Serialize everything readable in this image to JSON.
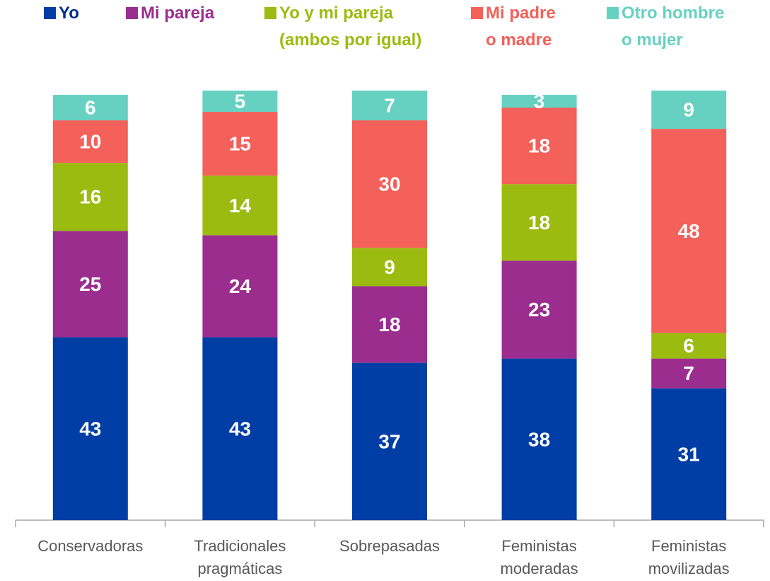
{
  "chart_data": {
    "type": "stacked_bar",
    "categories": [
      "Conservadoras",
      "Tradicionales\npragmáticas",
      "Sobrepasadas",
      "Feministas\nmoderadas",
      "Feministas\nmovilizadas"
    ],
    "series": [
      {
        "name": "Yo",
        "color": "#003da5",
        "values": [
          43,
          43,
          37,
          38,
          31
        ]
      },
      {
        "name": "Mi pareja",
        "color": "#9b2d8e",
        "values": [
          25,
          24,
          18,
          23,
          7
        ]
      },
      {
        "name": "Yo y mi pareja\n(ambos por igual)",
        "color": "#9bbb11",
        "values": [
          16,
          14,
          9,
          18,
          6
        ]
      },
      {
        "name": "Mi padre\no madre",
        "color": "#f4605a",
        "values": [
          10,
          15,
          30,
          18,
          48
        ]
      },
      {
        "name": "Otro hombre\no mujer",
        "color": "#66d1c1",
        "values": [
          6,
          5,
          7,
          3,
          9
        ]
      }
    ],
    "legend": "top"
  }
}
